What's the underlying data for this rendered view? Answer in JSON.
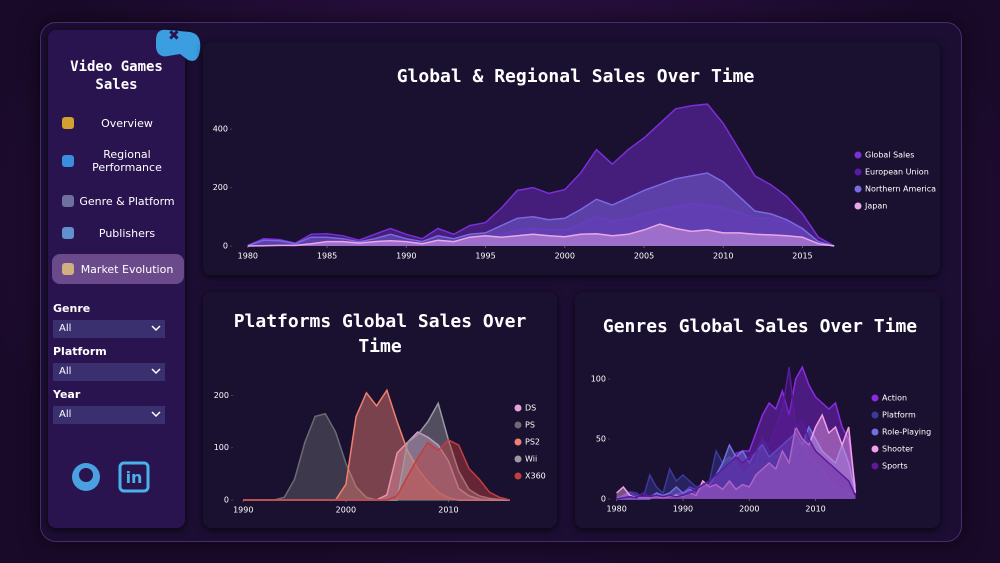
{
  "sidebar": {
    "title": "Video Games Sales",
    "nav": [
      "Overview",
      "Regional Performance",
      "Genre & Platform",
      "Publishers",
      "Market Evolution"
    ],
    "active": 4,
    "filters": [
      {
        "label": "Genre",
        "value": "All"
      },
      {
        "label": "Platform",
        "value": "All"
      },
      {
        "label": "Year",
        "value": "All"
      }
    ]
  },
  "chart_data": [
    {
      "type": "area",
      "title": "Global & Regional Sales Over Time",
      "legend": "right",
      "x": [
        1980,
        1981,
        1982,
        1983,
        1984,
        1985,
        1986,
        1987,
        1988,
        1989,
        1990,
        1991,
        1992,
        1993,
        1994,
        1995,
        1996,
        1997,
        1998,
        1999,
        2000,
        2001,
        2002,
        2003,
        2004,
        2005,
        2006,
        2007,
        2008,
        2009,
        2010,
        2011,
        2012,
        2013,
        2014,
        2015,
        2016,
        2017
      ],
      "xlim": [
        1979,
        2018
      ],
      "xticks": [
        1980,
        1985,
        1990,
        1995,
        2000,
        2005,
        2010,
        2015
      ],
      "ylim": [
        0,
        500
      ],
      "yticks": [
        0,
        200,
        400
      ],
      "series": [
        {
          "name": "Global Sales",
          "color": "#7b2fd6",
          "values": [
            2,
            25,
            22,
            10,
            40,
            42,
            35,
            20,
            40,
            60,
            40,
            25,
            60,
            40,
            70,
            80,
            130,
            190,
            200,
            180,
            193,
            250,
            330,
            280,
            330,
            370,
            420,
            470,
            480,
            486,
            420,
            330,
            240,
            210,
            170,
            110,
            30,
            0
          ]
        },
        {
          "name": "European Union",
          "color": "#5a1aa8",
          "values": [
            0,
            3,
            3,
            1,
            5,
            8,
            8,
            5,
            10,
            12,
            10,
            6,
            15,
            10,
            20,
            25,
            40,
            55,
            60,
            55,
            55,
            75,
            100,
            85,
            95,
            110,
            125,
            135,
            145,
            140,
            130,
            115,
            95,
            95,
            80,
            55,
            15,
            0
          ]
        },
        {
          "name": "Northern America",
          "color": "#7a6ae0",
          "values": [
            1,
            20,
            18,
            8,
            30,
            30,
            25,
            14,
            25,
            40,
            25,
            15,
            35,
            25,
            40,
            45,
            70,
            95,
            100,
            90,
            95,
            125,
            160,
            140,
            165,
            190,
            210,
            230,
            240,
            250,
            220,
            170,
            120,
            110,
            90,
            60,
            15,
            0
          ]
        },
        {
          "name": "Japan",
          "color": "#e8a8e8",
          "values": [
            0,
            1,
            2,
            2,
            8,
            15,
            15,
            10,
            15,
            18,
            15,
            8,
            20,
            15,
            30,
            35,
            30,
            35,
            40,
            35,
            32,
            40,
            42,
            35,
            40,
            55,
            75,
            60,
            50,
            55,
            45,
            45,
            40,
            38,
            35,
            30,
            8,
            0
          ]
        }
      ]
    },
    {
      "type": "area",
      "title": "Platforms Global Sales Over Time",
      "legend": "right",
      "x": [
        1990,
        1991,
        1992,
        1993,
        1994,
        1995,
        1996,
        1997,
        1998,
        1999,
        2000,
        2001,
        2002,
        2003,
        2004,
        2005,
        2006,
        2007,
        2008,
        2009,
        2010,
        2011,
        2012,
        2013,
        2014,
        2015,
        2016
      ],
      "xlim": [
        1989,
        2016
      ],
      "xticks": [
        1990,
        2000,
        2010
      ],
      "ylim": [
        0,
        220
      ],
      "yticks": [
        0,
        100,
        200
      ],
      "series": [
        {
          "name": "DS",
          "color": "#e6a0d8",
          "values": [
            0,
            0,
            0,
            0,
            0,
            0,
            0,
            0,
            0,
            0,
            0,
            0,
            0,
            0,
            10,
            90,
            110,
            130,
            120,
            105,
            75,
            22,
            8,
            2,
            0,
            0,
            0
          ]
        },
        {
          "name": "PS",
          "color": "#6b6b72",
          "values": [
            0,
            0,
            0,
            0,
            5,
            40,
            110,
            160,
            165,
            130,
            70,
            25,
            5,
            0,
            0,
            0,
            0,
            0,
            0,
            0,
            0,
            0,
            0,
            0,
            0,
            0,
            0
          ]
        },
        {
          "name": "PS2",
          "color": "#f08070",
          "values": [
            0,
            0,
            0,
            0,
            0,
            0,
            0,
            0,
            0,
            0,
            30,
            160,
            205,
            180,
            210,
            150,
            95,
            60,
            35,
            15,
            4,
            0,
            0,
            0,
            0,
            0,
            0
          ]
        },
        {
          "name": "Wii",
          "color": "#9a9aa0",
          "values": [
            0,
            0,
            0,
            0,
            0,
            0,
            0,
            0,
            0,
            0,
            0,
            0,
            0,
            0,
            0,
            0,
            110,
            125,
            150,
            185,
            115,
            55,
            20,
            8,
            3,
            1,
            0
          ]
        },
        {
          "name": "X360",
          "color": "#c04040",
          "values": [
            0,
            0,
            0,
            0,
            0,
            0,
            0,
            0,
            0,
            0,
            0,
            0,
            0,
            0,
            0,
            8,
            45,
            80,
            110,
            95,
            115,
            105,
            60,
            40,
            15,
            5,
            0
          ]
        }
      ]
    },
    {
      "type": "area",
      "title": "Genres Global Sales Over Time",
      "legend": "right",
      "x": [
        1980,
        1981,
        1982,
        1983,
        1984,
        1985,
        1986,
        1987,
        1988,
        1989,
        1990,
        1991,
        1992,
        1993,
        1994,
        1995,
        1996,
        1997,
        1998,
        1999,
        2000,
        2001,
        2002,
        2003,
        2004,
        2005,
        2006,
        2007,
        2008,
        2009,
        2010,
        2011,
        2012,
        2013,
        2014,
        2015,
        2016
      ],
      "xlim": [
        1979,
        2017
      ],
      "xticks": [
        1980,
        1990,
        2000,
        2010
      ],
      "ylim": [
        0,
        120
      ],
      "yticks": [
        0,
        50,
        100
      ],
      "series": [
        {
          "name": "Action",
          "color": "#8a2be2",
          "values": [
            1,
            2,
            5,
            3,
            1,
            2,
            5,
            3,
            2,
            4,
            5,
            10,
            8,
            12,
            15,
            20,
            25,
            30,
            38,
            40,
            40,
            55,
            70,
            80,
            75,
            90,
            70,
            100,
            110,
            95,
            85,
            80,
            75,
            80,
            60,
            50,
            10
          ]
        },
        {
          "name": "Platform",
          "color": "#3a3a9a",
          "values": [
            0,
            3,
            6,
            5,
            1,
            20,
            10,
            5,
            25,
            15,
            20,
            15,
            10,
            12,
            15,
            40,
            30,
            35,
            30,
            20,
            25,
            30,
            50,
            40,
            35,
            40,
            30,
            45,
            50,
            35,
            30,
            25,
            15,
            10,
            8,
            5,
            2
          ]
        },
        {
          "name": "Role-Playing",
          "color": "#7070e0",
          "values": [
            0,
            0,
            0,
            0,
            0,
            0,
            5,
            3,
            5,
            10,
            5,
            8,
            5,
            10,
            12,
            20,
            30,
            45,
            35,
            40,
            30,
            40,
            45,
            35,
            40,
            45,
            50,
            55,
            45,
            60,
            50,
            40,
            35,
            30,
            45,
            30,
            5
          ]
        },
        {
          "name": "Shooter",
          "color": "#f0a0e8",
          "values": [
            5,
            10,
            3,
            1,
            1,
            1,
            2,
            1,
            2,
            3,
            2,
            5,
            3,
            15,
            10,
            12,
            8,
            15,
            8,
            12,
            10,
            20,
            25,
            30,
            25,
            40,
            30,
            60,
            50,
            45,
            60,
            70,
            55,
            60,
            45,
            60,
            5
          ]
        },
        {
          "name": "Sports",
          "color": "#5a1a9a",
          "values": [
            0,
            1,
            2,
            1,
            5,
            2,
            3,
            2,
            3,
            2,
            3,
            5,
            8,
            12,
            15,
            20,
            25,
            30,
            35,
            30,
            35,
            40,
            50,
            45,
            60,
            75,
            110,
            60,
            65,
            50,
            40,
            35,
            30,
            25,
            20,
            15,
            3
          ]
        }
      ]
    }
  ]
}
